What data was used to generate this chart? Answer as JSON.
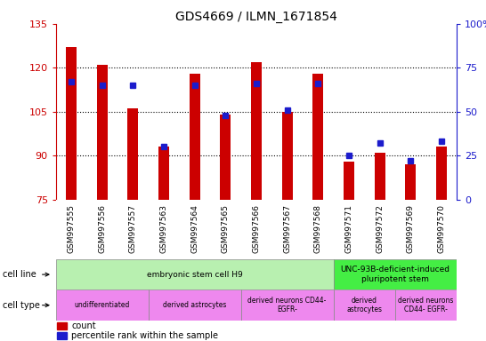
{
  "title": "GDS4669 / ILMN_1671854",
  "samples": [
    "GSM997555",
    "GSM997556",
    "GSM997557",
    "GSM997563",
    "GSM997564",
    "GSM997565",
    "GSM997566",
    "GSM997567",
    "GSM997568",
    "GSM997571",
    "GSM997572",
    "GSM997569",
    "GSM997570"
  ],
  "count_values": [
    127,
    121,
    106,
    93,
    118,
    104,
    122,
    105,
    118,
    88,
    91,
    87,
    93
  ],
  "percentile_values": [
    67,
    65,
    65,
    30,
    65,
    48,
    66,
    51,
    66,
    25,
    32,
    22,
    33
  ],
  "ylim_left": [
    75,
    135
  ],
  "ylim_right": [
    0,
    100
  ],
  "yticks_left": [
    75,
    90,
    105,
    120,
    135
  ],
  "yticks_right": [
    0,
    25,
    50,
    75,
    100
  ],
  "ytick_labels_left": [
    "75",
    "90",
    "105",
    "120",
    "135"
  ],
  "ytick_labels_right": [
    "0",
    "25",
    "50",
    "75",
    "100%"
  ],
  "bar_color": "#cc0000",
  "dot_color": "#1c1ccc",
  "cell_line_colors": [
    "#b8f0b0",
    "#44ee44"
  ],
  "cell_type_color": "#ee88ee",
  "left_axis_color": "#cc0000",
  "right_axis_color": "#1c1ccc",
  "bg_color": "#ffffff",
  "tick_bg_color": "#c8c8c8",
  "cell_line_groups": [
    {
      "label": "embryonic stem cell H9",
      "start": 0,
      "end": 9,
      "color_idx": 0
    },
    {
      "label": "UNC-93B-deficient-induced\npluripotent stem",
      "start": 9,
      "end": 13,
      "color_idx": 1
    }
  ],
  "cell_type_groups": [
    {
      "label": "undifferentiated",
      "start": 0,
      "end": 3
    },
    {
      "label": "derived astrocytes",
      "start": 3,
      "end": 6
    },
    {
      "label": "derived neurons CD44-\nEGFR-",
      "start": 6,
      "end": 9
    },
    {
      "label": "derived\nastrocytes",
      "start": 9,
      "end": 11
    },
    {
      "label": "derived neurons\nCD44- EGFR-",
      "start": 11,
      "end": 13
    }
  ]
}
